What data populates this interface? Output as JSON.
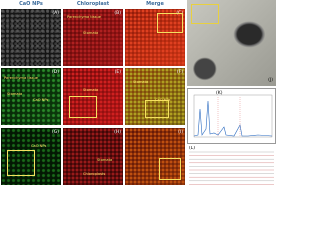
{
  "columns": [
    "CaO NPs",
    "Chloroplast",
    "Merge"
  ],
  "panels": [
    {
      "label": "(A)"
    },
    {
      "label": "(B)",
      "annotations": [
        "Parenchyma tissue",
        "Stomata"
      ]
    },
    {
      "label": "(C)"
    },
    {
      "label": "(D)",
      "annotations": [
        "Parenchyma tissue",
        "Stomata",
        "CaO NPs"
      ]
    },
    {
      "label": "(E)",
      "annotations": [
        "Stomata"
      ]
    },
    {
      "label": "(F)",
      "annotations": [
        "Stomata",
        "CaO NPs"
      ]
    },
    {
      "label": "(G)",
      "annotations": [
        "CaO NPs"
      ]
    },
    {
      "label": "(H)",
      "annotations": [
        "Stomata",
        "Chloroplasts"
      ]
    },
    {
      "label": "(I)"
    },
    {
      "label": "(J)"
    },
    {
      "label": "(K)"
    },
    {
      "label": "(L)"
    }
  ]
}
